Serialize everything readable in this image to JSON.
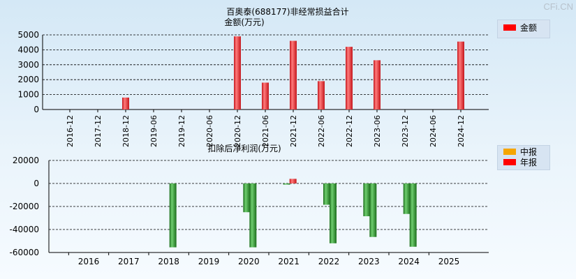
{
  "watermark": "CFi.CN",
  "colors": {
    "grid": "#000000",
    "bar_red_light": "#ff7b7b",
    "bar_red_dark": "#c4161c",
    "bar_green_light": "#6fce6f",
    "bar_green_dark": "#1c6e1c",
    "swatch_zhongbao": "#f5a500",
    "swatch_nianbao": "#ff0000",
    "swatch_amount": "#ff0000"
  },
  "chart_data": [
    {
      "type": "bar",
      "title": "百奥泰(688177)非经常损益合计",
      "ylabel": "金额(万元)",
      "ylim": [
        0,
        5000
      ],
      "yticks": [
        0,
        1000,
        2000,
        3000,
        4000,
        5000
      ],
      "grid": true,
      "legend_position": "top-right",
      "categories": [
        "2016-12",
        "2017-12",
        "2018-12",
        "2019-06",
        "2019-12",
        "2020-06",
        "2020-12",
        "2021-06",
        "2021-12",
        "2022-06",
        "2022-12",
        "2023-06",
        "2023-12",
        "2024-06",
        "2024-12"
      ],
      "series": [
        {
          "name": "金额",
          "values": [
            0,
            0,
            800,
            0,
            0,
            0,
            4900,
            1800,
            4600,
            1900,
            4200,
            3300,
            0,
            0,
            4550
          ]
        }
      ]
    },
    {
      "type": "bar",
      "title": "扣除后净利润(万元)",
      "ylim": [
        -60000,
        20000
      ],
      "yticks": [
        -60000,
        -40000,
        -20000,
        0,
        20000
      ],
      "grid": true,
      "legend_position": "top-right",
      "categories": [
        "2016",
        "2017",
        "2018",
        "2019",
        "2020",
        "2021",
        "2022",
        "2023",
        "2024",
        "2025"
      ],
      "series": [
        {
          "name": "中报",
          "values": [
            null,
            null,
            null,
            null,
            -25000,
            -1000,
            -18500,
            -28500,
            -26500,
            null
          ]
        },
        {
          "name": "年报",
          "values": [
            null,
            null,
            -55500,
            null,
            -55500,
            4000,
            -52000,
            -46500,
            -55000,
            null
          ]
        }
      ]
    }
  ]
}
